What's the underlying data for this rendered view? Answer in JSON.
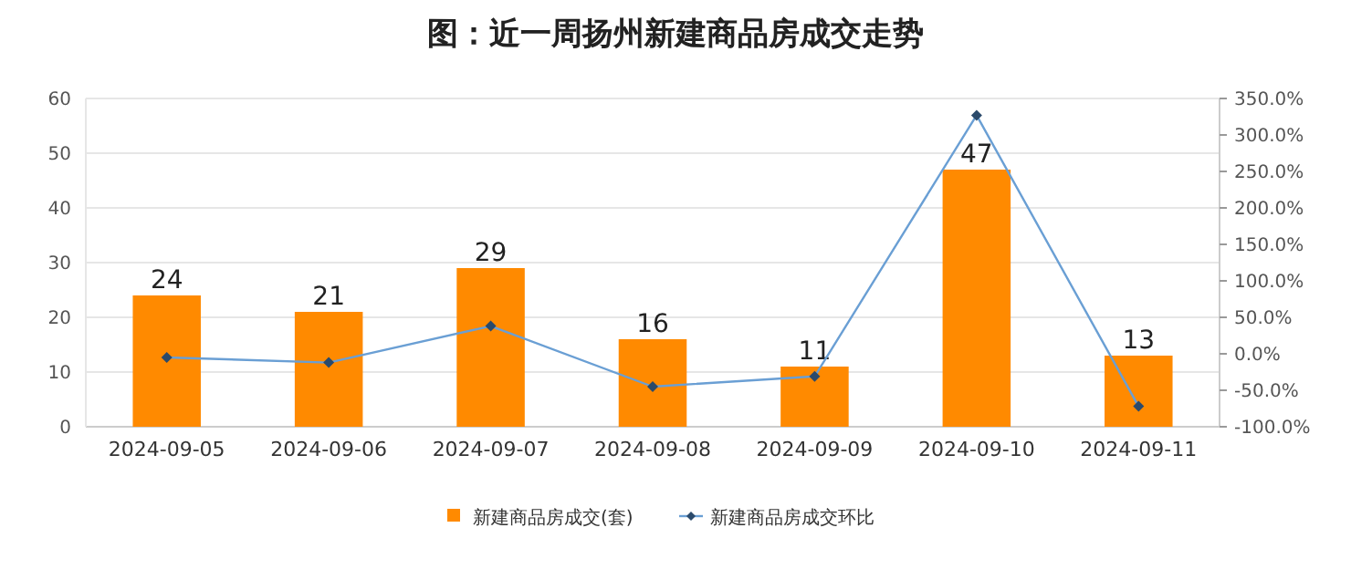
{
  "chart_data": {
    "type": "bar",
    "title": "图：近一周扬州新建商品房成交走势",
    "categories": [
      "2024-09-05",
      "2024-09-06",
      "2024-09-07",
      "2024-09-08",
      "2024-09-09",
      "2024-09-10",
      "2024-09-11"
    ],
    "series": [
      {
        "name": "新建商品房成交(套)",
        "color": "#ff8a00",
        "values": [
          24,
          21,
          29,
          16,
          11,
          47,
          13
        ],
        "value_labels": [
          "24",
          "21",
          "29",
          "16",
          "11",
          "47",
          "13"
        ]
      },
      {
        "name": "新建商品房成交环比",
        "type": "line",
        "axis": "y2",
        "color": "#6a9fd4",
        "marker": "diamond",
        "values": [
          -5,
          -12,
          38,
          -45,
          -31,
          327,
          -72
        ]
      }
    ],
    "ylim": [
      0,
      60
    ],
    "yticks": [
      0,
      10,
      20,
      30,
      40,
      50,
      60
    ],
    "y2lim": [
      -100,
      350
    ],
    "y2ticks": [
      {
        "value": -100,
        "label": "-100.0%"
      },
      {
        "value": -50,
        "label": "-50.0%"
      },
      {
        "value": 0,
        "label": "0.0%"
      },
      {
        "value": 50,
        "label": "50.0%"
      },
      {
        "value": 100,
        "label": "100.0%"
      },
      {
        "value": 150,
        "label": "150.0%"
      },
      {
        "value": 200,
        "label": "200.0%"
      },
      {
        "value": 250,
        "label": "250.0%"
      },
      {
        "value": 300,
        "label": "300.0%"
      },
      {
        "value": 350,
        "label": "350.0%"
      }
    ],
    "grid": "y",
    "legend": "bottom"
  }
}
